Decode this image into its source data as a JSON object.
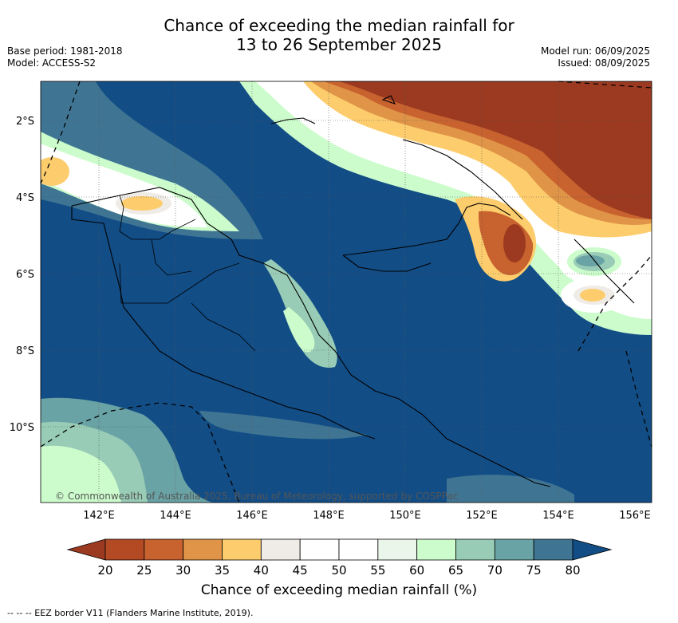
{
  "header": {
    "title_line1": "Chance of exceeding the median rainfall for",
    "title_line2": "13 to 26 September 2025",
    "base_period": "Base period: 1981-2018",
    "model": "Model: ACCESS-S2",
    "model_run": "Model run: 06/09/2025",
    "issued": "Issued: 08/09/2025"
  },
  "map": {
    "region": "Papua New Guinea",
    "lat_labels": [
      "2°S",
      "4°S",
      "6°S",
      "8°S",
      "10°S"
    ],
    "lon_labels": [
      "142°E",
      "144°E",
      "146°E",
      "148°E",
      "150°E",
      "152°E",
      "154°E",
      "156°E"
    ],
    "copyright": "© Commonwealth of Australia 2025, Bureau of Meteorology, supported by COSPPac"
  },
  "colorbar": {
    "ticks": [
      "20",
      "25",
      "30",
      "35",
      "40",
      "45",
      "50",
      "55",
      "60",
      "65",
      "70",
      "75",
      "80"
    ],
    "colors": [
      "#9b3a20",
      "#b34a24",
      "#c8622f",
      "#e09447",
      "#fdcd6d",
      "#efebe6",
      "#ffffff",
      "#ffffff",
      "#eaf6ea",
      "#ccfccc",
      "#98ccb6",
      "#6aa3a5",
      "#3f7593",
      "#124d86"
    ],
    "title": "Chance of exceeding median rainfall (%)"
  },
  "footer": {
    "legend": "--  --  -- EEZ border V11 (Flanders Marine Institute, 2019)."
  }
}
